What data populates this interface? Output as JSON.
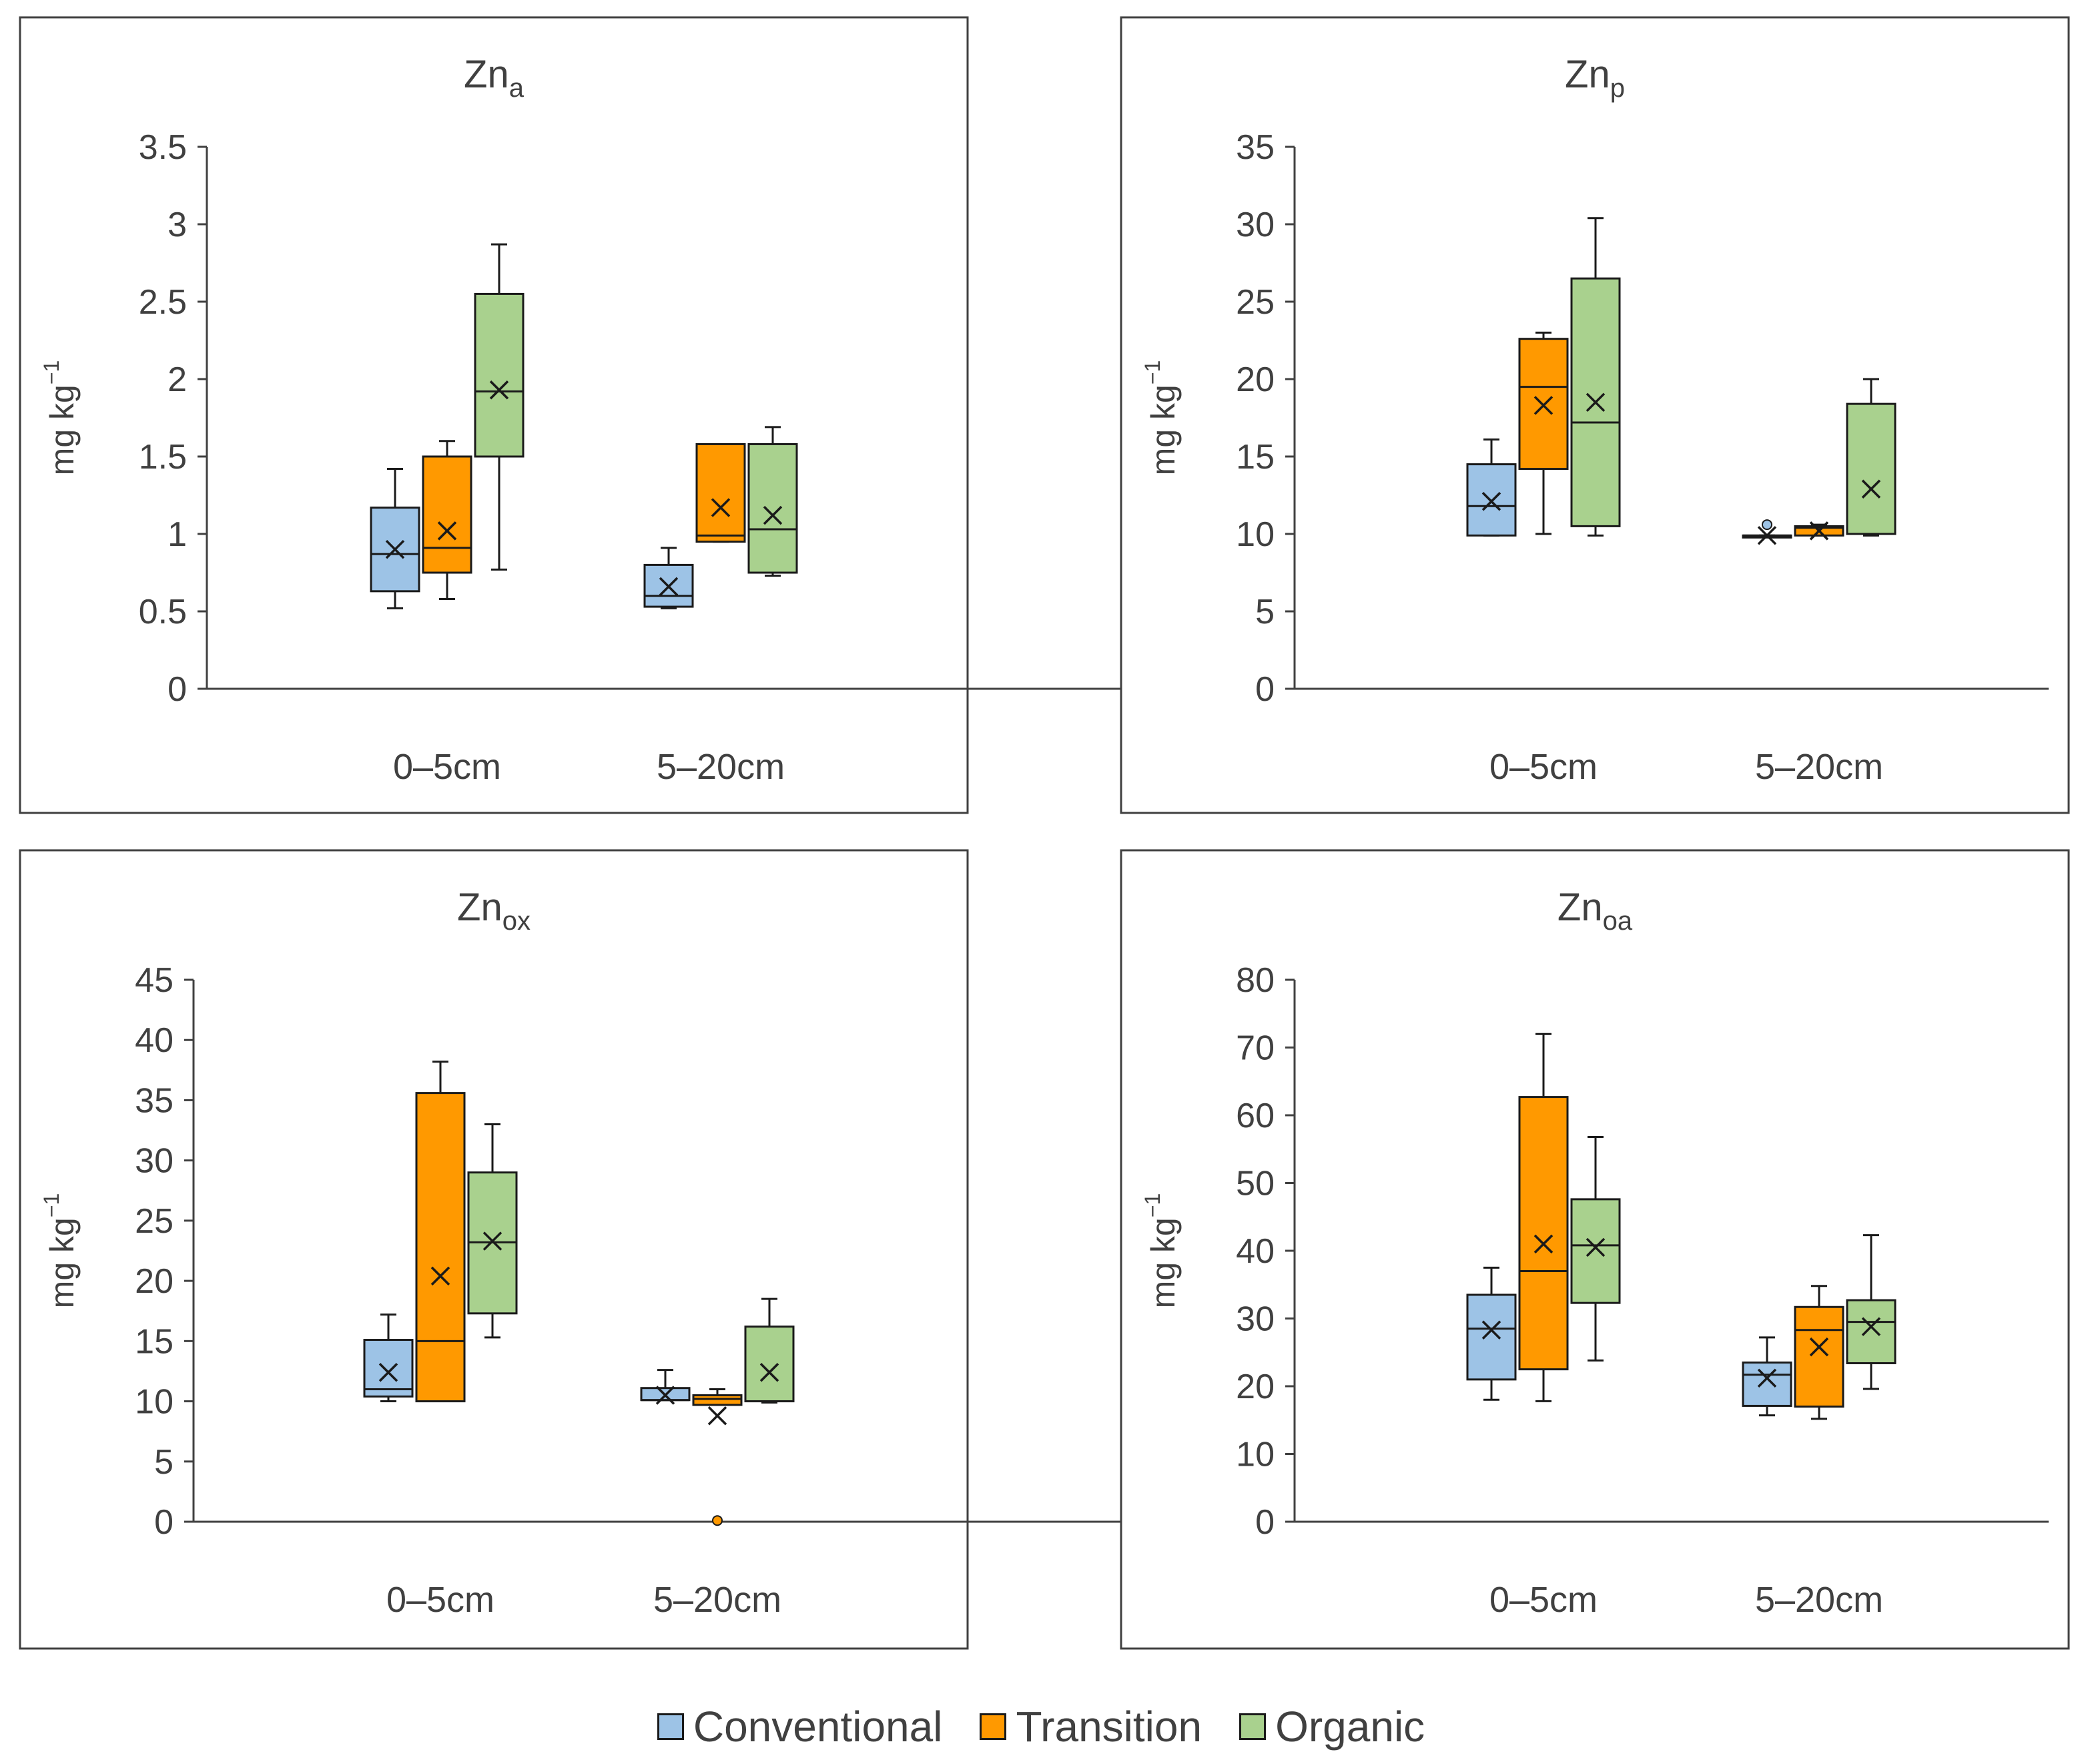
{
  "chart_data": [
    {
      "type": "box",
      "title": "Zn",
      "title_subscript": "a",
      "ylabel": "mg kg",
      "ylabel_superscript": "−1",
      "ylim": [
        0,
        3.5
      ],
      "yticks": [
        "0",
        "0.5",
        "1",
        "1.5",
        "2",
        "2.5",
        "3",
        "3.5"
      ],
      "categories": [
        "0–5cm",
        "5–20cm"
      ],
      "series": [
        {
          "name": "Conventional",
          "boxes": [
            {
              "min": 0.52,
              "q1": 0.63,
              "median": 0.87,
              "q3": 1.17,
              "max": 1.42,
              "mean": 0.9,
              "outliers": []
            },
            {
              "min": 0.52,
              "q1": 0.53,
              "median": 0.6,
              "q3": 0.8,
              "max": 0.91,
              "mean": 0.66,
              "outliers": []
            }
          ]
        },
        {
          "name": "Transition",
          "boxes": [
            {
              "min": 0.58,
              "q1": 0.75,
              "median": 0.91,
              "q3": 1.5,
              "max": 1.6,
              "mean": 1.02,
              "outliers": []
            },
            {
              "min": 0.95,
              "q1": 0.95,
              "median": 0.99,
              "q3": 1.58,
              "max": 1.58,
              "mean": 1.17,
              "outliers": []
            }
          ]
        },
        {
          "name": "Organic",
          "boxes": [
            {
              "min": 0.77,
              "q1": 1.5,
              "median": 1.92,
              "q3": 2.55,
              "max": 2.87,
              "mean": 1.93,
              "outliers": []
            },
            {
              "min": 0.73,
              "q1": 0.75,
              "median": 1.03,
              "q3": 1.58,
              "max": 1.69,
              "mean": 1.12,
              "outliers": []
            }
          ]
        }
      ]
    },
    {
      "type": "box",
      "title": "Zn",
      "title_subscript": "p",
      "ylabel": "mg kg",
      "ylabel_superscript": "−1",
      "ylim": [
        0,
        35
      ],
      "yticks": [
        "0",
        "5",
        "10",
        "15",
        "20",
        "25",
        "30",
        "35"
      ],
      "categories": [
        "0–5cm",
        "5–20cm"
      ],
      "series": [
        {
          "name": "Conventional",
          "boxes": [
            {
              "min": 9.9,
              "q1": 9.9,
              "median": 11.8,
              "q3": 14.5,
              "max": 16.1,
              "mean": 12.1,
              "outliers": []
            },
            {
              "min": 9.9,
              "q1": 9.9,
              "median": 9.9,
              "q3": 9.9,
              "max": 9.9,
              "mean": 9.9,
              "outliers": [
                10.6
              ]
            }
          ]
        },
        {
          "name": "Transition",
          "boxes": [
            {
              "min": 10.0,
              "q1": 14.2,
              "median": 19.5,
              "q3": 22.6,
              "max": 23.0,
              "mean": 18.3,
              "outliers": []
            },
            {
              "min": 9.9,
              "q1": 9.9,
              "median": 10.4,
              "q3": 10.5,
              "max": 10.6,
              "mean": 10.2,
              "outliers": []
            }
          ]
        },
        {
          "name": "Organic",
          "boxes": [
            {
              "min": 9.9,
              "q1": 10.5,
              "median": 17.2,
              "q3": 26.5,
              "max": 30.4,
              "mean": 18.5,
              "outliers": []
            },
            {
              "min": 9.9,
              "q1": 10.0,
              "median": 10.0,
              "q3": 18.4,
              "max": 20.0,
              "mean": 12.9,
              "outliers": []
            }
          ]
        }
      ]
    },
    {
      "type": "box",
      "title": "Zn",
      "title_subscript": "ox",
      "ylabel": "mg kg",
      "ylabel_superscript": "−1",
      "ylim": [
        0,
        45
      ],
      "yticks": [
        "0",
        "5",
        "10",
        "15",
        "20",
        "25",
        "30",
        "35",
        "40",
        "45"
      ],
      "categories": [
        "0–5cm",
        "5–20cm"
      ],
      "series": [
        {
          "name": "Conventional",
          "boxes": [
            {
              "min": 10.0,
              "q1": 10.4,
              "median": 11.0,
              "q3": 15.1,
              "max": 17.2,
              "mean": 12.4,
              "outliers": []
            },
            {
              "min": 10.1,
              "q1": 10.1,
              "median": 10.1,
              "q3": 11.1,
              "max": 12.6,
              "mean": 10.5,
              "outliers": []
            }
          ]
        },
        {
          "name": "Transition",
          "boxes": [
            {
              "min": 10.0,
              "q1": 10.0,
              "median": 15.0,
              "q3": 35.6,
              "max": 38.2,
              "mean": 20.4,
              "outliers": []
            },
            {
              "min": 9.7,
              "q1": 9.7,
              "median": 10.2,
              "q3": 10.5,
              "max": 11.0,
              "mean": 8.8,
              "outliers": [
                0.1
              ]
            }
          ]
        },
        {
          "name": "Organic",
          "boxes": [
            {
              "min": 15.3,
              "q1": 17.3,
              "median": 23.2,
              "q3": 29.0,
              "max": 33.0,
              "mean": 23.3,
              "outliers": []
            },
            {
              "min": 9.9,
              "q1": 10.0,
              "median": 10.0,
              "q3": 16.2,
              "max": 18.5,
              "mean": 12.4,
              "outliers": []
            }
          ]
        }
      ]
    },
    {
      "type": "box",
      "title": "Zn",
      "title_subscript": "oa",
      "ylabel": "mg kg",
      "ylabel_superscript": "−1",
      "ylim": [
        0,
        80
      ],
      "yticks": [
        "0",
        "10",
        "20",
        "30",
        "40",
        "50",
        "60",
        "70",
        "80"
      ],
      "categories": [
        "0–5cm",
        "5–20cm"
      ],
      "series": [
        {
          "name": "Conventional",
          "boxes": [
            {
              "min": 18.0,
              "q1": 21.0,
              "median": 28.5,
              "q3": 33.5,
              "max": 37.5,
              "mean": 28.3,
              "outliers": []
            },
            {
              "min": 15.7,
              "q1": 17.1,
              "median": 21.7,
              "q3": 23.5,
              "max": 27.2,
              "mean": 21.2,
              "outliers": []
            }
          ]
        },
        {
          "name": "Transition",
          "boxes": [
            {
              "min": 17.8,
              "q1": 22.5,
              "median": 37.0,
              "q3": 62.7,
              "max": 72.0,
              "mean": 41.0,
              "outliers": []
            },
            {
              "min": 15.2,
              "q1": 17.0,
              "median": 28.3,
              "q3": 31.7,
              "max": 34.8,
              "mean": 25.8,
              "outliers": []
            }
          ]
        },
        {
          "name": "Organic",
          "boxes": [
            {
              "min": 23.8,
              "q1": 32.3,
              "median": 40.8,
              "q3": 47.6,
              "max": 56.8,
              "mean": 40.5,
              "outliers": []
            },
            {
              "min": 19.6,
              "q1": 23.4,
              "median": 29.5,
              "q3": 32.7,
              "max": 42.3,
              "mean": 28.8,
              "outliers": []
            }
          ]
        }
      ]
    }
  ],
  "legend": {
    "position": "bottom-center",
    "items": [
      {
        "label": "Conventional",
        "color": "#9dc3e6"
      },
      {
        "label": "Transition",
        "color": "#ff9900"
      },
      {
        "label": "Organic",
        "color": "#a9d18e"
      }
    ]
  }
}
